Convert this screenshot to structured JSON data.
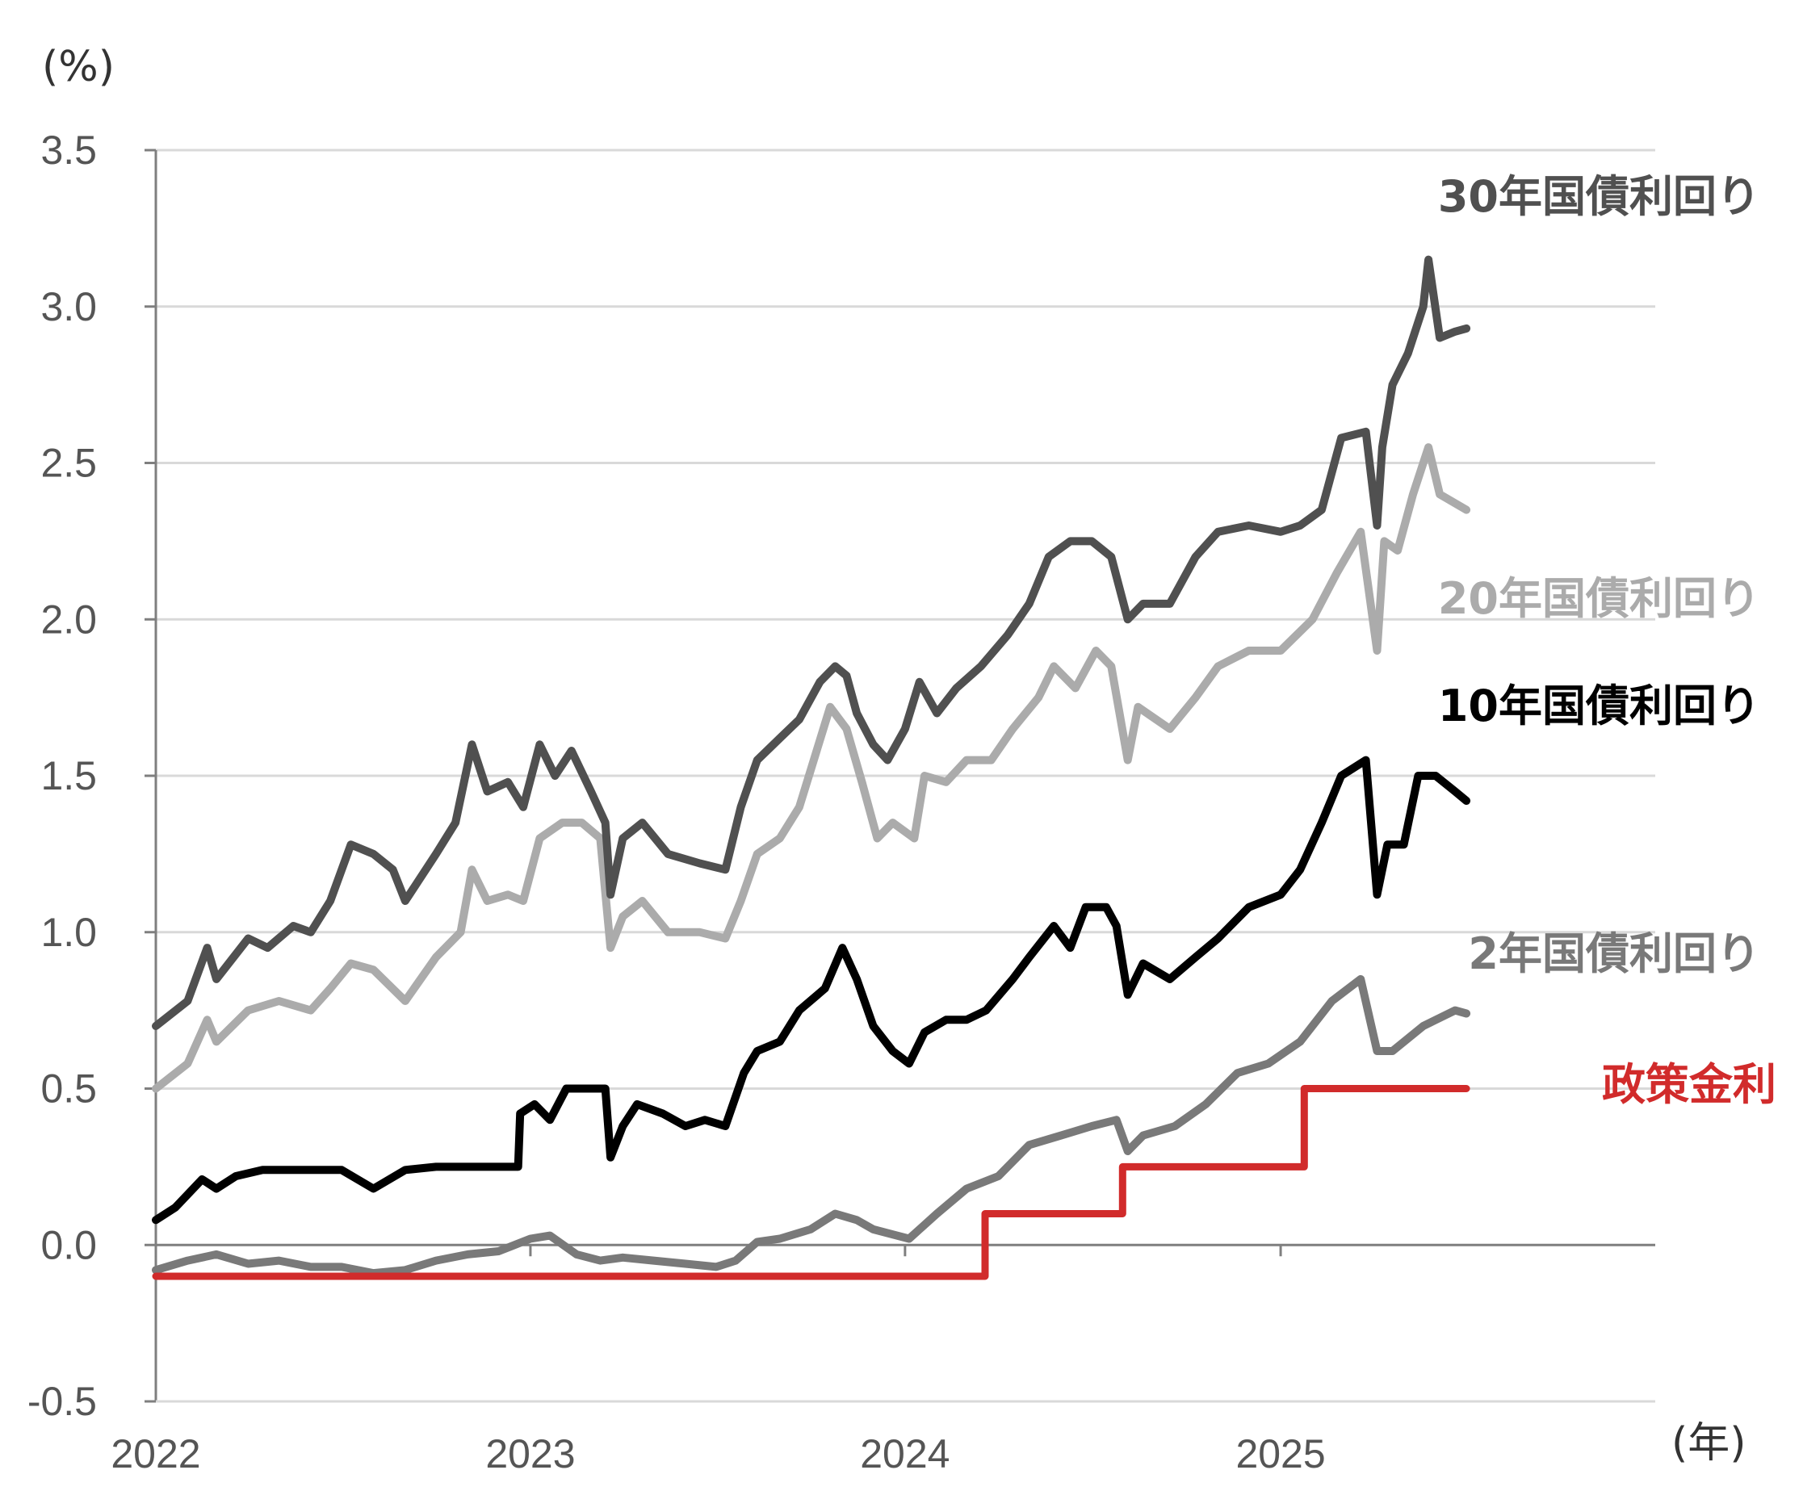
{
  "chart_data": {
    "type": "line",
    "y_unit_label": "(%)",
    "x_unit_label": "(年)",
    "ylim": [
      -0.5,
      3.5
    ],
    "y_ticks": [
      "-0.5",
      "0.0",
      "0.5",
      "1.0",
      "1.5",
      "2.0",
      "2.5",
      "3.0",
      "3.5"
    ],
    "y_tick_values": [
      -0.5,
      0.0,
      0.5,
      1.0,
      1.5,
      2.0,
      2.5,
      3.0,
      3.5
    ],
    "negative_tick_color": "#ff0000",
    "x_range": [
      "2022-01-01",
      "2026-01-01"
    ],
    "x_ticks": [
      "2022",
      "2023",
      "2024",
      "2025"
    ],
    "x_tick_dates": [
      "2022-01-01",
      "2023-01-01",
      "2024-01-01",
      "2025-01-01"
    ],
    "grid": "horizontal",
    "series": [
      {
        "name": "30年国債利回り",
        "color": "#505050",
        "points": [
          [
            "2022-01-01",
            0.7
          ],
          [
            "2022-02-01",
            0.78
          ],
          [
            "2022-02-20",
            0.95
          ],
          [
            "2022-03-01",
            0.85
          ],
          [
            "2022-04-01",
            0.98
          ],
          [
            "2022-04-20",
            0.95
          ],
          [
            "2022-05-15",
            1.02
          ],
          [
            "2022-06-01",
            1.0
          ],
          [
            "2022-06-20",
            1.1
          ],
          [
            "2022-07-10",
            1.28
          ],
          [
            "2022-08-01",
            1.25
          ],
          [
            "2022-08-20",
            1.2
          ],
          [
            "2022-09-01",
            1.1
          ],
          [
            "2022-10-01",
            1.25
          ],
          [
            "2022-10-20",
            1.35
          ],
          [
            "2022-11-05",
            1.6
          ],
          [
            "2022-11-20",
            1.45
          ],
          [
            "2022-12-10",
            1.48
          ],
          [
            "2022-12-25",
            1.4
          ],
          [
            "2023-01-10",
            1.6
          ],
          [
            "2023-01-25",
            1.5
          ],
          [
            "2023-02-10",
            1.58
          ],
          [
            "2023-03-01",
            1.45
          ],
          [
            "2023-03-15",
            1.35
          ],
          [
            "2023-03-20",
            1.12
          ],
          [
            "2023-04-01",
            1.3
          ],
          [
            "2023-04-20",
            1.35
          ],
          [
            "2023-05-15",
            1.25
          ],
          [
            "2023-06-15",
            1.22
          ],
          [
            "2023-07-10",
            1.2
          ],
          [
            "2023-07-25",
            1.4
          ],
          [
            "2023-08-10",
            1.55
          ],
          [
            "2023-09-01",
            1.62
          ],
          [
            "2023-09-20",
            1.68
          ],
          [
            "2023-10-10",
            1.8
          ],
          [
            "2023-10-25",
            1.85
          ],
          [
            "2023-11-05",
            1.82
          ],
          [
            "2023-11-15",
            1.7
          ],
          [
            "2023-12-01",
            1.6
          ],
          [
            "2023-12-15",
            1.55
          ],
          [
            "2024-01-01",
            1.65
          ],
          [
            "2024-01-15",
            1.8
          ],
          [
            "2024-02-01",
            1.7
          ],
          [
            "2024-02-20",
            1.78
          ],
          [
            "2024-03-15",
            1.85
          ],
          [
            "2024-04-10",
            1.95
          ],
          [
            "2024-05-01",
            2.05
          ],
          [
            "2024-05-20",
            2.2
          ],
          [
            "2024-06-10",
            2.25
          ],
          [
            "2024-07-01",
            2.25
          ],
          [
            "2024-07-20",
            2.2
          ],
          [
            "2024-08-05",
            2.0
          ],
          [
            "2024-08-20",
            2.05
          ],
          [
            "2024-09-15",
            2.05
          ],
          [
            "2024-10-10",
            2.2
          ],
          [
            "2024-11-01",
            2.28
          ],
          [
            "2024-12-01",
            2.3
          ],
          [
            "2025-01-01",
            2.28
          ],
          [
            "2025-01-20",
            2.3
          ],
          [
            "2025-02-10",
            2.35
          ],
          [
            "2025-03-01",
            2.58
          ],
          [
            "2025-03-25",
            2.6
          ],
          [
            "2025-04-05",
            2.3
          ],
          [
            "2025-04-10",
            2.55
          ],
          [
            "2025-04-20",
            2.75
          ],
          [
            "2025-05-05",
            2.85
          ],
          [
            "2025-05-20",
            3.0
          ],
          [
            "2025-05-25",
            3.15
          ],
          [
            "2025-06-05",
            2.9
          ],
          [
            "2025-06-20",
            2.92
          ],
          [
            "2025-07-01",
            2.93
          ]
        ]
      },
      {
        "name": "20年国債利回り",
        "color": "#ababab",
        "points": [
          [
            "2022-01-01",
            0.5
          ],
          [
            "2022-02-01",
            0.58
          ],
          [
            "2022-02-20",
            0.72
          ],
          [
            "2022-03-01",
            0.65
          ],
          [
            "2022-04-01",
            0.75
          ],
          [
            "2022-05-01",
            0.78
          ],
          [
            "2022-06-01",
            0.75
          ],
          [
            "2022-06-20",
            0.82
          ],
          [
            "2022-07-10",
            0.9
          ],
          [
            "2022-08-01",
            0.88
          ],
          [
            "2022-09-01",
            0.78
          ],
          [
            "2022-10-01",
            0.92
          ],
          [
            "2022-10-25",
            1.0
          ],
          [
            "2022-11-05",
            1.2
          ],
          [
            "2022-11-20",
            1.1
          ],
          [
            "2022-12-10",
            1.12
          ],
          [
            "2022-12-25",
            1.1
          ],
          [
            "2023-01-10",
            1.3
          ],
          [
            "2023-02-01",
            1.35
          ],
          [
            "2023-02-20",
            1.35
          ],
          [
            "2023-03-10",
            1.3
          ],
          [
            "2023-03-20",
            0.95
          ],
          [
            "2023-04-01",
            1.05
          ],
          [
            "2023-04-20",
            1.1
          ],
          [
            "2023-05-15",
            1.0
          ],
          [
            "2023-06-15",
            1.0
          ],
          [
            "2023-07-10",
            0.98
          ],
          [
            "2023-07-25",
            1.1
          ],
          [
            "2023-08-10",
            1.25
          ],
          [
            "2023-09-01",
            1.3
          ],
          [
            "2023-09-20",
            1.4
          ],
          [
            "2023-10-20",
            1.72
          ],
          [
            "2023-11-05",
            1.65
          ],
          [
            "2023-11-20",
            1.48
          ],
          [
            "2023-12-05",
            1.3
          ],
          [
            "2023-12-20",
            1.35
          ],
          [
            "2024-01-10",
            1.3
          ],
          [
            "2024-01-20",
            1.5
          ],
          [
            "2024-02-10",
            1.48
          ],
          [
            "2024-03-01",
            1.55
          ],
          [
            "2024-03-25",
            1.55
          ],
          [
            "2024-04-15",
            1.65
          ],
          [
            "2024-05-10",
            1.75
          ],
          [
            "2024-05-25",
            1.85
          ],
          [
            "2024-06-15",
            1.78
          ],
          [
            "2024-07-05",
            1.9
          ],
          [
            "2024-07-20",
            1.85
          ],
          [
            "2024-08-05",
            1.55
          ],
          [
            "2024-08-15",
            1.72
          ],
          [
            "2024-09-15",
            1.65
          ],
          [
            "2024-10-10",
            1.75
          ],
          [
            "2024-11-01",
            1.85
          ],
          [
            "2024-12-01",
            1.9
          ],
          [
            "2025-01-01",
            1.9
          ],
          [
            "2025-02-01",
            2.0
          ],
          [
            "2025-02-25",
            2.15
          ],
          [
            "2025-03-20",
            2.28
          ],
          [
            "2025-04-05",
            1.9
          ],
          [
            "2025-04-12",
            2.25
          ],
          [
            "2025-04-25",
            2.22
          ],
          [
            "2025-05-10",
            2.4
          ],
          [
            "2025-05-25",
            2.55
          ],
          [
            "2025-06-05",
            2.4
          ],
          [
            "2025-07-01",
            2.35
          ]
        ]
      },
      {
        "name": "10年国債利回り",
        "color": "#000000",
        "points": [
          [
            "2022-01-01",
            0.08
          ],
          [
            "2022-01-20",
            0.12
          ],
          [
            "2022-02-15",
            0.21
          ],
          [
            "2022-03-01",
            0.18
          ],
          [
            "2022-03-20",
            0.22
          ],
          [
            "2022-04-15",
            0.24
          ],
          [
            "2022-06-01",
            0.24
          ],
          [
            "2022-07-01",
            0.24
          ],
          [
            "2022-08-01",
            0.18
          ],
          [
            "2022-09-01",
            0.24
          ],
          [
            "2022-10-01",
            0.25
          ],
          [
            "2022-11-01",
            0.25
          ],
          [
            "2022-12-20",
            0.25
          ],
          [
            "2022-12-22",
            0.42
          ],
          [
            "2023-01-05",
            0.45
          ],
          [
            "2023-01-20",
            0.4
          ],
          [
            "2023-02-05",
            0.5
          ],
          [
            "2023-03-01",
            0.5
          ],
          [
            "2023-03-15",
            0.5
          ],
          [
            "2023-03-20",
            0.28
          ],
          [
            "2023-04-01",
            0.38
          ],
          [
            "2023-04-15",
            0.45
          ],
          [
            "2023-05-10",
            0.42
          ],
          [
            "2023-06-01",
            0.38
          ],
          [
            "2023-06-20",
            0.4
          ],
          [
            "2023-07-10",
            0.38
          ],
          [
            "2023-07-28",
            0.55
          ],
          [
            "2023-08-10",
            0.62
          ],
          [
            "2023-09-01",
            0.65
          ],
          [
            "2023-09-20",
            0.75
          ],
          [
            "2023-10-15",
            0.82
          ],
          [
            "2023-11-01",
            0.95
          ],
          [
            "2023-11-15",
            0.85
          ],
          [
            "2023-12-01",
            0.7
          ],
          [
            "2023-12-20",
            0.62
          ],
          [
            "2024-01-05",
            0.58
          ],
          [
            "2024-01-20",
            0.68
          ],
          [
            "2024-02-10",
            0.72
          ],
          [
            "2024-03-01",
            0.72
          ],
          [
            "2024-03-20",
            0.75
          ],
          [
            "2024-04-15",
            0.85
          ],
          [
            "2024-05-01",
            0.92
          ],
          [
            "2024-05-25",
            1.02
          ],
          [
            "2024-06-10",
            0.95
          ],
          [
            "2024-06-25",
            1.08
          ],
          [
            "2024-07-15",
            1.08
          ],
          [
            "2024-07-25",
            1.02
          ],
          [
            "2024-08-05",
            0.8
          ],
          [
            "2024-08-20",
            0.9
          ],
          [
            "2024-09-15",
            0.85
          ],
          [
            "2024-10-10",
            0.92
          ],
          [
            "2024-11-01",
            0.98
          ],
          [
            "2024-12-01",
            1.08
          ],
          [
            "2025-01-01",
            1.12
          ],
          [
            "2025-01-20",
            1.2
          ],
          [
            "2025-02-10",
            1.35
          ],
          [
            "2025-03-01",
            1.5
          ],
          [
            "2025-03-25",
            1.55
          ],
          [
            "2025-04-05",
            1.12
          ],
          [
            "2025-04-15",
            1.28
          ],
          [
            "2025-05-01",
            1.28
          ],
          [
            "2025-05-15",
            1.5
          ],
          [
            "2025-06-01",
            1.5
          ],
          [
            "2025-06-20",
            1.45
          ],
          [
            "2025-07-01",
            1.42
          ]
        ]
      },
      {
        "name": "2年国債利回り",
        "color": "#797979",
        "points": [
          [
            "2022-01-01",
            -0.08
          ],
          [
            "2022-02-01",
            -0.05
          ],
          [
            "2022-03-01",
            -0.03
          ],
          [
            "2022-04-01",
            -0.06
          ],
          [
            "2022-05-01",
            -0.05
          ],
          [
            "2022-06-01",
            -0.07
          ],
          [
            "2022-07-01",
            -0.07
          ],
          [
            "2022-08-01",
            -0.09
          ],
          [
            "2022-09-01",
            -0.08
          ],
          [
            "2022-10-01",
            -0.05
          ],
          [
            "2022-11-01",
            -0.03
          ],
          [
            "2022-12-01",
            -0.02
          ],
          [
            "2023-01-01",
            0.02
          ],
          [
            "2023-01-20",
            0.03
          ],
          [
            "2023-02-15",
            -0.03
          ],
          [
            "2023-03-10",
            -0.05
          ],
          [
            "2023-04-01",
            -0.04
          ],
          [
            "2023-05-01",
            -0.05
          ],
          [
            "2023-06-01",
            -0.06
          ],
          [
            "2023-07-01",
            -0.07
          ],
          [
            "2023-07-20",
            -0.05
          ],
          [
            "2023-08-10",
            0.01
          ],
          [
            "2023-09-01",
            0.02
          ],
          [
            "2023-10-01",
            0.05
          ],
          [
            "2023-10-25",
            0.1
          ],
          [
            "2023-11-15",
            0.08
          ],
          [
            "2023-12-01",
            0.05
          ],
          [
            "2024-01-05",
            0.02
          ],
          [
            "2024-02-01",
            0.1
          ],
          [
            "2024-03-01",
            0.18
          ],
          [
            "2024-04-01",
            0.22
          ],
          [
            "2024-05-01",
            0.32
          ],
          [
            "2024-06-01",
            0.35
          ],
          [
            "2024-07-01",
            0.38
          ],
          [
            "2024-07-25",
            0.4
          ],
          [
            "2024-08-05",
            0.3
          ],
          [
            "2024-08-20",
            0.35
          ],
          [
            "2024-09-20",
            0.38
          ],
          [
            "2024-10-20",
            0.45
          ],
          [
            "2024-11-20",
            0.55
          ],
          [
            "2024-12-20",
            0.58
          ],
          [
            "2025-01-20",
            0.65
          ],
          [
            "2025-02-20",
            0.78
          ],
          [
            "2025-03-20",
            0.85
          ],
          [
            "2025-04-05",
            0.62
          ],
          [
            "2025-04-20",
            0.62
          ],
          [
            "2025-05-20",
            0.7
          ],
          [
            "2025-06-20",
            0.75
          ],
          [
            "2025-07-01",
            0.74
          ]
        ]
      },
      {
        "name": "政策金利",
        "color": "#d12b2b",
        "step": true,
        "points": [
          [
            "2022-01-01",
            -0.1
          ],
          [
            "2024-03-19",
            0.1
          ],
          [
            "2024-07-31",
            0.25
          ],
          [
            "2025-01-24",
            0.5
          ],
          [
            "2025-07-01",
            0.5
          ]
        ]
      }
    ]
  }
}
